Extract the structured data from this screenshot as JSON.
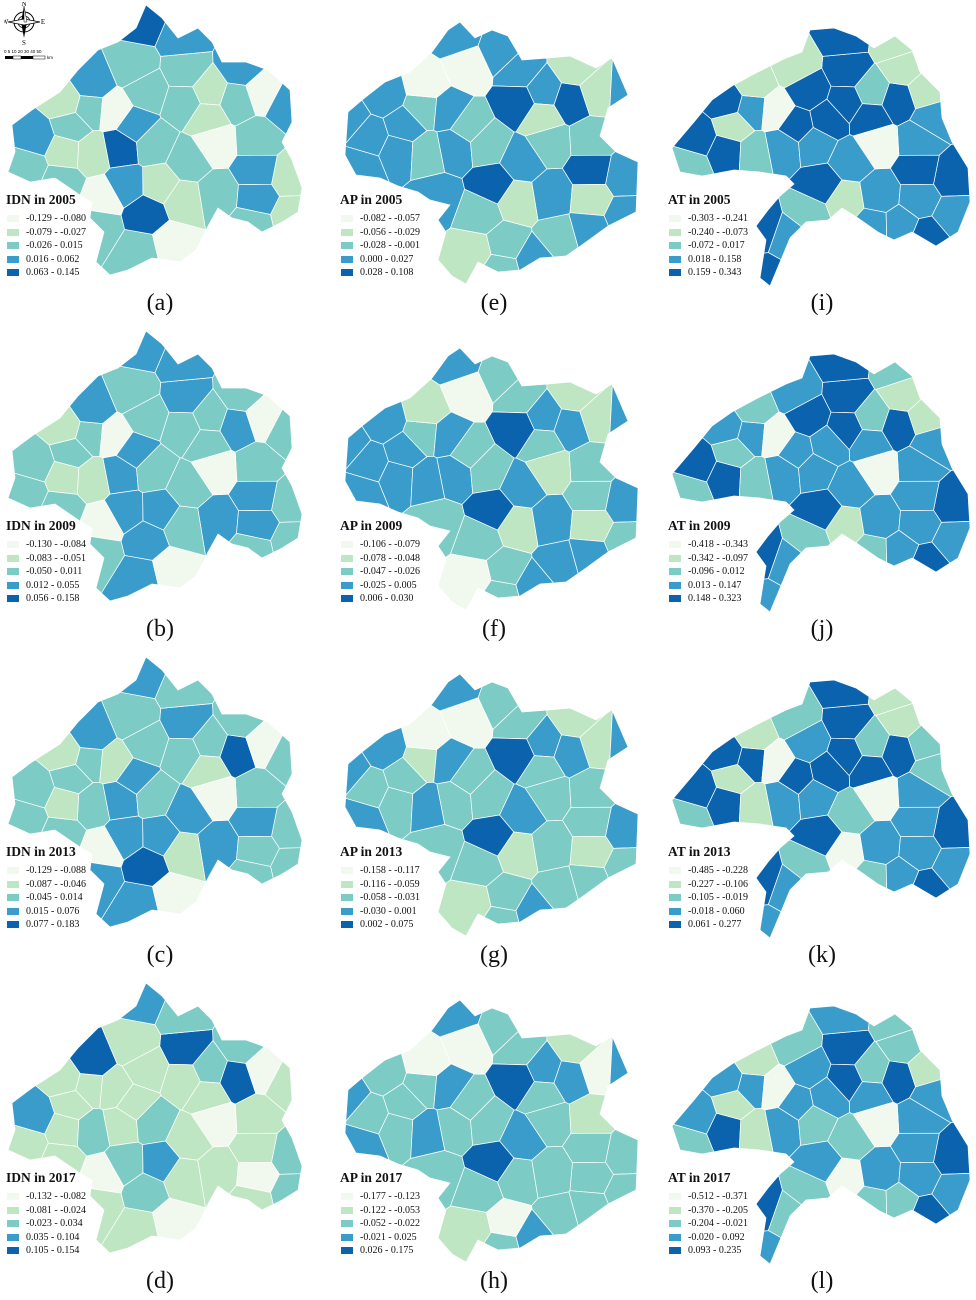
{
  "palette": [
    "#f1f9ee",
    "#bfe6c2",
    "#7ccbc4",
    "#3a9ccb",
    "#0b63ad"
  ],
  "compass": {
    "north": "N",
    "south": "S",
    "east": "E",
    "west": "W",
    "scale": "0 5 10  20  30  40  50",
    "unit": "km"
  },
  "panels": [
    {
      "title": "IDN in 2005",
      "caption": "(a)",
      "shape": "idn",
      "ranges": [
        "-0.129 - -0.080",
        "-0.079 - -0.027",
        "-0.026 - 0.015",
        "0.016 - 0.062",
        "0.063 - 0.145"
      ],
      "classes": [
        1,
        2,
        2,
        2,
        3,
        2,
        3,
        4,
        3,
        2,
        0,
        0,
        3,
        2,
        2,
        1,
        1,
        1,
        3,
        1,
        0,
        0,
        0,
        1,
        2,
        2,
        1,
        2,
        1,
        3,
        2,
        3,
        4,
        2,
        2,
        4,
        3,
        1,
        2,
        2,
        3,
        2
      ]
    },
    {
      "title": "AP in 2005",
      "caption": "(e)",
      "shape": "ap",
      "ranges": [
        "-0.082 - -0.057",
        "-0.056 - -0.029",
        "-0.028 - -0.001",
        "0.000 - 0.027",
        "0.028 - 0.108"
      ],
      "classes": [
        3,
        3,
        2,
        4,
        3,
        3,
        2,
        2,
        3,
        3,
        1,
        1,
        1,
        2,
        0,
        0,
        2,
        3,
        3,
        1,
        1,
        1,
        2,
        3,
        3,
        2,
        4,
        3,
        3,
        2,
        3,
        4,
        3,
        3,
        4,
        2,
        3,
        2,
        3,
        3,
        3,
        3
      ]
    },
    {
      "title": "AT in 2005",
      "caption": "(i)",
      "shape": "at",
      "ranges": [
        "-0.303 - -0.241",
        "-0.240 - -0.073",
        "-0.072 - 0.017",
        "0.018 - 0.158",
        "0.159 - 0.343"
      ],
      "classes": [
        2,
        3,
        4,
        4,
        4,
        3,
        4,
        3,
        1,
        1,
        1,
        1,
        3,
        4,
        4,
        4,
        3,
        1,
        0,
        0,
        2,
        4,
        4,
        3,
        4,
        3,
        4,
        4,
        3,
        4,
        3,
        1,
        2,
        4,
        3,
        4,
        1,
        2,
        3,
        4,
        3,
        4
      ]
    },
    {
      "title": "IDN in 2009",
      "caption": "(b)",
      "shape": "idn",
      "ranges": [
        "-0.130 - -0.084",
        "-0.083 - -0.051",
        "-0.050 - 0.011",
        "0.012 - 0.055",
        "0.056 - 0.158"
      ],
      "classes": [
        2,
        3,
        3,
        3,
        2,
        2,
        3,
        3,
        2,
        3,
        0,
        0,
        3,
        2,
        2,
        1,
        2,
        2,
        3,
        2,
        0,
        0,
        0,
        1,
        2,
        2,
        2,
        2,
        3,
        3,
        2,
        3,
        3,
        2,
        2,
        3,
        2,
        1,
        2,
        2,
        3,
        2
      ]
    },
    {
      "title": "AP in 2009",
      "caption": "(f)",
      "shape": "ap",
      "ranges": [
        "-0.106 - -0.079",
        "-0.078 - -0.048",
        "-0.047 - -0.026",
        "-0.025 - 0.005",
        "0.006 - 0.030"
      ],
      "classes": [
        3,
        3,
        3,
        3,
        2,
        3,
        2,
        2,
        3,
        3,
        1,
        0,
        1,
        2,
        1,
        0,
        2,
        3,
        3,
        2,
        1,
        1,
        1,
        2,
        3,
        3,
        4,
        3,
        2,
        2,
        3,
        4,
        3,
        3,
        2,
        2,
        3,
        2,
        3,
        3,
        2,
        3
      ]
    },
    {
      "title": "AT in 2009",
      "caption": "(j)",
      "shape": "at",
      "ranges": [
        "-0.418 - -0.343",
        "-0.342 - -0.097",
        "-0.096 - 0.012",
        "0.013 - 0.147",
        "0.148 - 0.323"
      ],
      "classes": [
        2,
        3,
        4,
        4,
        4,
        3,
        3,
        3,
        1,
        1,
        2,
        3,
        3,
        4,
        4,
        3,
        3,
        1,
        0,
        0,
        2,
        4,
        4,
        3,
        4,
        3,
        4,
        4,
        3,
        3,
        3,
        2,
        2,
        3,
        2,
        3,
        2,
        2,
        3,
        4,
        3,
        3
      ]
    },
    {
      "title": "IDN in 2013",
      "caption": "(c)",
      "shape": "idn",
      "ranges": [
        "-0.129 - -0.088",
        "-0.087 - -0.046",
        "-0.045 - 0.014",
        "0.015 - 0.076",
        "0.077 - 0.183"
      ],
      "classes": [
        2,
        3,
        4,
        3,
        2,
        2,
        3,
        3,
        2,
        3,
        0,
        0,
        3,
        2,
        2,
        1,
        2,
        1,
        2,
        1,
        0,
        0,
        1,
        2,
        2,
        3,
        2,
        2,
        3,
        2,
        3,
        3,
        3,
        2,
        2,
        4,
        2,
        1,
        2,
        2,
        3,
        2
      ]
    },
    {
      "title": "AP in 2013",
      "caption": "(g)",
      "shape": "ap",
      "ranges": [
        "-0.158 - -0.117",
        "-0.116 - -0.059",
        "-0.058 - -0.031",
        "-0.030 - 0.001",
        "0.002 - 0.075"
      ],
      "classes": [
        3,
        2,
        2,
        3,
        2,
        2,
        1,
        2,
        3,
        2,
        1,
        1,
        1,
        2,
        0,
        0,
        2,
        2,
        3,
        2,
        1,
        1,
        2,
        2,
        3,
        3,
        4,
        3,
        2,
        2,
        3,
        4,
        3,
        2,
        2,
        2,
        2,
        2,
        3,
        3,
        2,
        3
      ]
    },
    {
      "title": "AT in 2013",
      "caption": "(k)",
      "shape": "at",
      "ranges": [
        "-0.485 - -0.228",
        "-0.227 - -0.106",
        "-0.105 - -0.019",
        "-0.018 - 0.060",
        "0.061 - 0.277"
      ],
      "classes": [
        2,
        3,
        4,
        4,
        4,
        4,
        4,
        3,
        1,
        2,
        1,
        2,
        3,
        4,
        4,
        4,
        3,
        0,
        0,
        0,
        1,
        4,
        4,
        3,
        4,
        3,
        4,
        4,
        2,
        3,
        3,
        1,
        2,
        3,
        2,
        4,
        1,
        2,
        2,
        3,
        3,
        4
      ]
    },
    {
      "title": "IDN in 2017",
      "caption": "(d)",
      "shape": "idn",
      "ranges": [
        "-0.132 - -0.082",
        "-0.081 - -0.024",
        "-0.023 - 0.034",
        "0.035 - 0.104",
        "0.105 - 0.154"
      ],
      "classes": [
        2,
        1,
        4,
        4,
        3,
        1,
        1,
        1,
        2,
        1,
        0,
        0,
        4,
        1,
        1,
        1,
        2,
        1,
        0,
        1,
        0,
        0,
        1,
        2,
        1,
        1,
        2,
        2,
        3,
        2,
        1,
        1,
        3,
        1,
        1,
        2,
        1,
        1,
        1,
        1,
        2,
        1
      ]
    },
    {
      "title": "AP in 2017",
      "caption": "(h)",
      "shape": "ap",
      "ranges": [
        "-0.177 - -0.123",
        "-0.122 - -0.053",
        "-0.052 - -0.022",
        "-0.021 - 0.025",
        "0.026 - 0.175"
      ],
      "classes": [
        3,
        2,
        2,
        3,
        2,
        2,
        2,
        2,
        2,
        2,
        1,
        1,
        0,
        0,
        0,
        0,
        1,
        2,
        2,
        2,
        2,
        2,
        2,
        2,
        3,
        3,
        4,
        3,
        2,
        2,
        3,
        4,
        3,
        2,
        2,
        2,
        2,
        2,
        3,
        3,
        2,
        3
      ]
    },
    {
      "title": "AT in 2017",
      "caption": "(l)",
      "shape": "at",
      "ranges": [
        "-0.512 - -0.371",
        "-0.370 - -0.205",
        "-0.204 - -0.021",
        "-0.020 - 0.092",
        "0.093 - 0.235"
      ],
      "classes": [
        2,
        3,
        4,
        4,
        3,
        3,
        3,
        3,
        2,
        1,
        1,
        2,
        3,
        4,
        4,
        3,
        3,
        0,
        0,
        0,
        1,
        4,
        4,
        3,
        4,
        2,
        3,
        3,
        2,
        3,
        2,
        1,
        2,
        3,
        2,
        3,
        2,
        2,
        3,
        3,
        2,
        3
      ]
    }
  ]
}
